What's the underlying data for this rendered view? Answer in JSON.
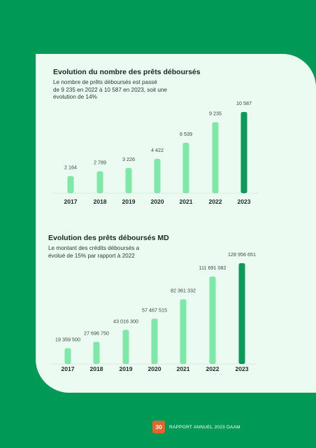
{
  "charts": {
    "loans": {
      "title": "Evolution du nombre des prêts déboursés",
      "subtitle_lines": [
        "Le nombre de prêts déboursés est passé",
        "de 9 235 en 2022 à 10 587 en 2023, soit une",
        "évolution de 14%"
      ]
    },
    "amounts": {
      "title": "Evolution des prêts déboursés MD",
      "subtitle_lines": [
        "Le montant des crédits déboursés a",
        "évolué de 15% par rapport à 2022"
      ]
    }
  },
  "chart_data": [
    {
      "type": "bar",
      "title": "Evolution du nombre des prêts déboursés",
      "categories": [
        "2017",
        "2018",
        "2019",
        "2020",
        "2021",
        "2022",
        "2023"
      ],
      "values": [
        2164,
        2789,
        3226,
        4422,
        6539,
        9235,
        10587
      ],
      "labels": [
        "2 164",
        "2 789",
        "3 226",
        "4 422",
        "6 539",
        "9 235",
        "10 587"
      ],
      "ylim": [
        0,
        10587
      ],
      "colors": {
        "bar": "#7ee8a8",
        "highlight": "#0c9a58"
      }
    },
    {
      "type": "bar",
      "title": "Evolution des prêts déboursés MD",
      "categories": [
        "2017",
        "2018",
        "2019",
        "2020",
        "2021",
        "2022",
        "2023"
      ],
      "values": [
        19359500,
        27696750,
        43016300,
        57467515,
        82361332,
        111691082,
        128956651
      ],
      "labels": [
        "19 359 500",
        "27 696 750",
        "43 016 300",
        "57 467 515",
        "82 361 332",
        "111 691 082",
        "128 956 651"
      ],
      "ylim": [
        0,
        128956651
      ],
      "colors": {
        "bar": "#7ee8a8",
        "highlight": "#0c9a58"
      }
    }
  ],
  "footer": {
    "page_number": "30",
    "report_title": "RAPPORT ANNUEL 2023 DAAM"
  },
  "colors": {
    "background": "#009a57",
    "card": "#ebfbf1",
    "page_badge": "#e8622a"
  }
}
